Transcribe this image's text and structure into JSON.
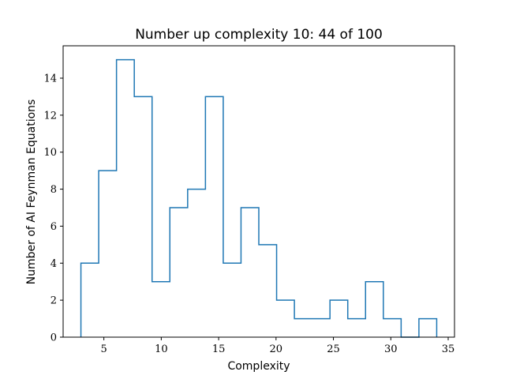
{
  "chart_data": {
    "type": "histogram",
    "title": "Number up complexity 10: 44 of 100",
    "xlabel": "Complexity",
    "ylabel": "Number of AI Feynman Equations",
    "xlim": [
      1.45,
      35.55
    ],
    "ylim": [
      0,
      15.75
    ],
    "xticks": [
      5,
      10,
      15,
      20,
      25,
      30,
      35
    ],
    "yticks": [
      0,
      2,
      4,
      6,
      8,
      10,
      12,
      14
    ],
    "bin_edges": [
      3,
      4.55,
      6.1,
      7.65,
      9.2,
      10.75,
      12.3,
      13.85,
      15.4,
      16.95,
      18.5,
      20.05,
      21.6,
      23.15,
      24.7,
      26.25,
      27.8,
      29.35,
      30.9,
      32.45,
      34
    ],
    "counts": [
      4,
      9,
      15,
      13,
      3,
      7,
      8,
      13,
      4,
      7,
      5,
      2,
      1,
      1,
      2,
      1,
      3,
      1,
      0,
      1
    ],
    "histtype": "step",
    "color": "#1f77b4",
    "grid": false,
    "legend": null
  }
}
